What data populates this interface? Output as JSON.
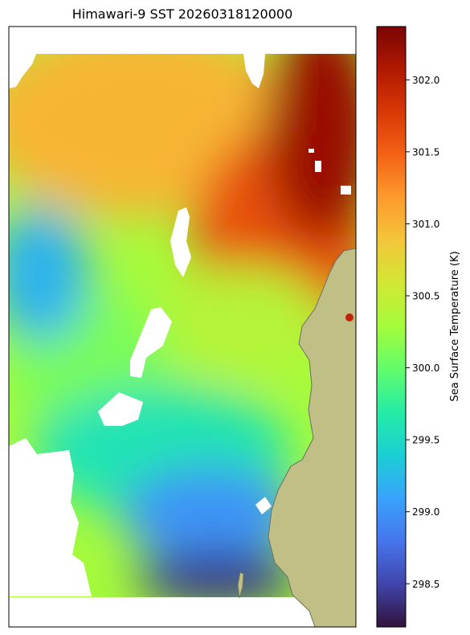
{
  "chart_data": {
    "type": "heatmap",
    "title": "Himawari-9 SST 20260318120000",
    "colorbar": {
      "label": "Sea Surface Temperature (K)",
      "range": [
        298.2,
        302.37
      ],
      "ticks": [
        298.5,
        299.0,
        299.5,
        300.0,
        300.5,
        301.0,
        301.5,
        302.0
      ],
      "tick_labels": [
        "298.5",
        "299.0",
        "299.5",
        "300.0",
        "300.5",
        "301.0",
        "301.5",
        "302.0"
      ],
      "colormap": "turbo",
      "colormap_stops": [
        "#30123b",
        "#4145ab",
        "#4675ed",
        "#39a2fc",
        "#1bcfd4",
        "#24eca6",
        "#61fc6c",
        "#a4fc3b",
        "#d1e834",
        "#f3c63a",
        "#fe9b2d",
        "#f36315",
        "#d93806",
        "#b11901",
        "#7a0403"
      ]
    },
    "regions": [
      {
        "name": "northeast",
        "value": 302.2
      },
      {
        "name": "east-central",
        "value": 301.6
      },
      {
        "name": "north",
        "value": 301.0
      },
      {
        "name": "center",
        "value": 300.4
      },
      {
        "name": "west",
        "value": 300.1
      },
      {
        "name": "west-blob",
        "value": 299.2
      },
      {
        "name": "south-center",
        "value": 299.6
      },
      {
        "name": "south",
        "value": 299.0
      },
      {
        "name": "far-south",
        "value": 298.4
      }
    ],
    "features": {
      "land": "#c0bf85",
      "land_edge": "#6e6e66",
      "no_data": "#ffffff",
      "axis_ticks": false
    }
  }
}
